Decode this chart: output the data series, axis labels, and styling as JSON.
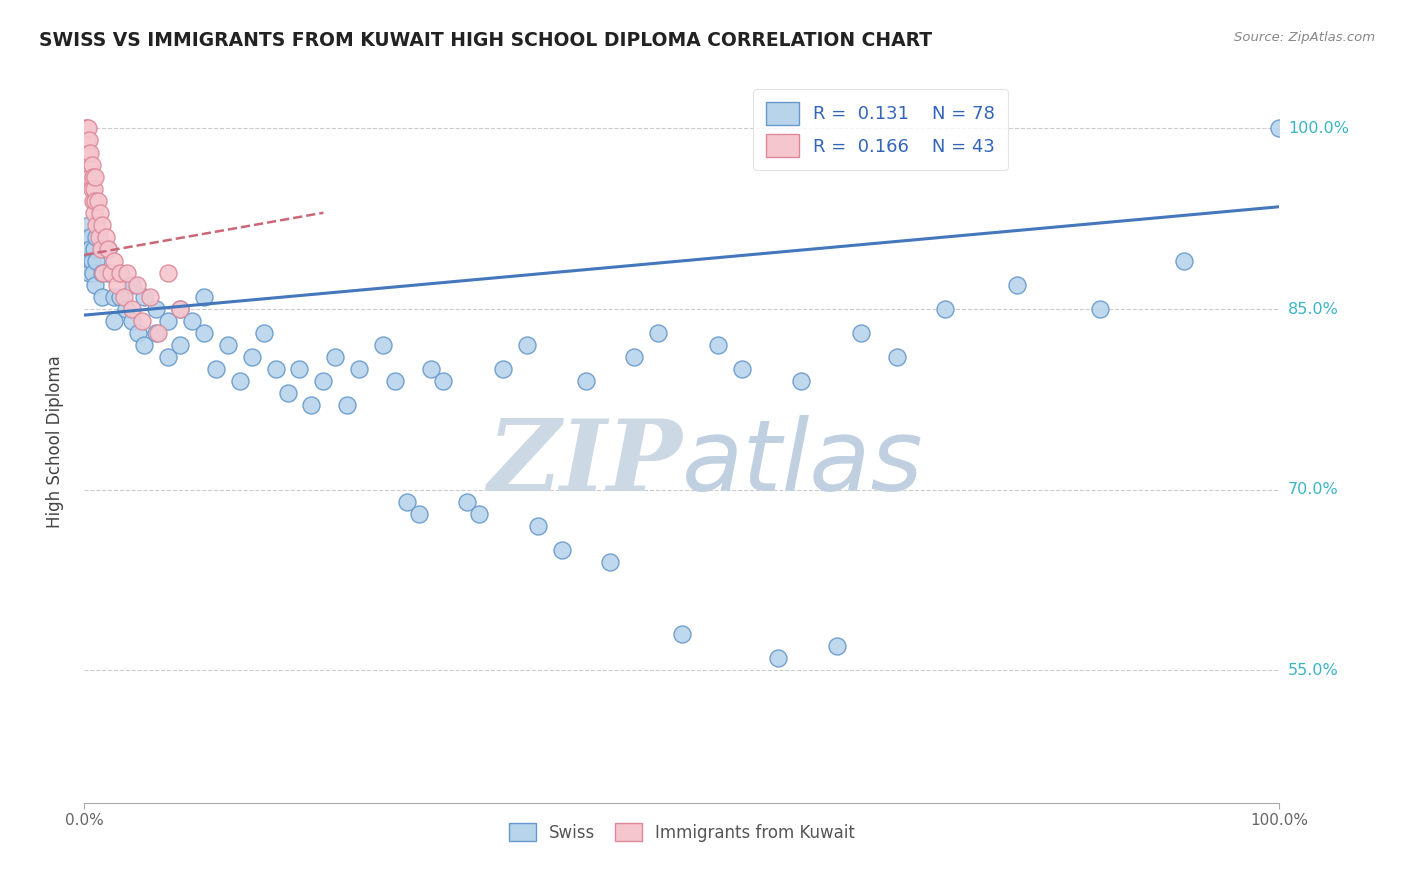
{
  "title": "SWISS VS IMMIGRANTS FROM KUWAIT HIGH SCHOOL DIPLOMA CORRELATION CHART",
  "source": "Source: ZipAtlas.com",
  "ylabel": "High School Diploma",
  "xlim": [
    0.0,
    1.0
  ],
  "ylim": [
    0.44,
    1.04
  ],
  "yticks": [
    0.55,
    0.7,
    0.85,
    1.0
  ],
  "ytick_labels": [
    "55.0%",
    "70.0%",
    "85.0%",
    "100.0%"
  ],
  "xtick_labels": [
    "0.0%",
    "100.0%"
  ],
  "legend_r1": "R = 0.131",
  "legend_n1": "N = 78",
  "legend_r2": "R = 0.166",
  "legend_n2": "N = 43",
  "swiss_color": "#b8d4eb",
  "swiss_edge_color": "#6699cc",
  "kuwait_color": "#f5c6ce",
  "kuwait_edge_color": "#dd8899",
  "trend_blue": "#4477bb",
  "trend_pink": "#cc6677",
  "watermark_zip": "ZIP",
  "watermark_atlas": "atlas",
  "watermark_color_zip": "#d0dce8",
  "watermark_color_atlas": "#c8d8e8",
  "legend_text_color": "#3366bb",
  "title_color": "#222222",
  "axis_label_color": "#444444",
  "tick_label_color": "#3ab5c6",
  "swiss_x": [
    0.003,
    0.003,
    0.003,
    0.004,
    0.004,
    0.005,
    0.005,
    0.006,
    0.007,
    0.008,
    0.009,
    0.01,
    0.01,
    0.015,
    0.015,
    0.02,
    0.02,
    0.025,
    0.025,
    0.03,
    0.03,
    0.035,
    0.04,
    0.04,
    0.045,
    0.05,
    0.05,
    0.06,
    0.06,
    0.07,
    0.07,
    0.08,
    0.08,
    0.09,
    0.1,
    0.1,
    0.11,
    0.12,
    0.13,
    0.14,
    0.15,
    0.16,
    0.17,
    0.18,
    0.19,
    0.2,
    0.21,
    0.22,
    0.23,
    0.25,
    0.26,
    0.27,
    0.28,
    0.29,
    0.3,
    0.32,
    0.33,
    0.35,
    0.37,
    0.38,
    0.4,
    0.42,
    0.44,
    0.46,
    0.48,
    0.5,
    0.53,
    0.55,
    0.58,
    0.6,
    0.63,
    0.65,
    0.68,
    0.72,
    0.78,
    0.85,
    0.92,
    1.0
  ],
  "swiss_y": [
    0.91,
    0.9,
    0.89,
    0.92,
    0.88,
    0.91,
    0.9,
    0.89,
    0.88,
    0.9,
    0.87,
    0.91,
    0.89,
    0.88,
    0.86,
    0.9,
    0.88,
    0.86,
    0.84,
    0.88,
    0.86,
    0.85,
    0.87,
    0.84,
    0.83,
    0.86,
    0.82,
    0.85,
    0.83,
    0.84,
    0.81,
    0.85,
    0.82,
    0.84,
    0.86,
    0.83,
    0.8,
    0.82,
    0.79,
    0.81,
    0.83,
    0.8,
    0.78,
    0.8,
    0.77,
    0.79,
    0.81,
    0.77,
    0.8,
    0.82,
    0.79,
    0.69,
    0.68,
    0.8,
    0.79,
    0.69,
    0.68,
    0.8,
    0.82,
    0.67,
    0.65,
    0.79,
    0.64,
    0.81,
    0.83,
    0.58,
    0.82,
    0.8,
    0.56,
    0.79,
    0.57,
    0.83,
    0.81,
    0.85,
    0.87,
    0.85,
    0.89,
    1.0
  ],
  "kuwait_x": [
    0.001,
    0.001,
    0.001,
    0.002,
    0.002,
    0.002,
    0.003,
    0.003,
    0.003,
    0.004,
    0.004,
    0.005,
    0.005,
    0.006,
    0.006,
    0.007,
    0.007,
    0.008,
    0.008,
    0.009,
    0.009,
    0.01,
    0.011,
    0.012,
    0.013,
    0.014,
    0.015,
    0.016,
    0.018,
    0.02,
    0.022,
    0.025,
    0.027,
    0.03,
    0.033,
    0.036,
    0.04,
    0.044,
    0.048,
    0.055,
    0.062,
    0.07,
    0.08
  ],
  "kuwait_y": [
    1.0,
    0.99,
    0.98,
    1.0,
    0.99,
    0.97,
    1.0,
    0.98,
    0.96,
    0.99,
    0.97,
    0.98,
    0.96,
    0.97,
    0.95,
    0.96,
    0.94,
    0.95,
    0.93,
    0.96,
    0.94,
    0.92,
    0.94,
    0.91,
    0.93,
    0.9,
    0.92,
    0.88,
    0.91,
    0.9,
    0.88,
    0.89,
    0.87,
    0.88,
    0.86,
    0.88,
    0.85,
    0.87,
    0.84,
    0.86,
    0.83,
    0.88,
    0.85
  ],
  "swiss_trend_x0": 0.0,
  "swiss_trend_x1": 1.0,
  "swiss_trend_y0": 0.845,
  "swiss_trend_y1": 0.935,
  "kuwait_trend_x0": 0.0,
  "kuwait_trend_x1": 0.2,
  "kuwait_trend_y0": 0.895,
  "kuwait_trend_y1": 0.93
}
